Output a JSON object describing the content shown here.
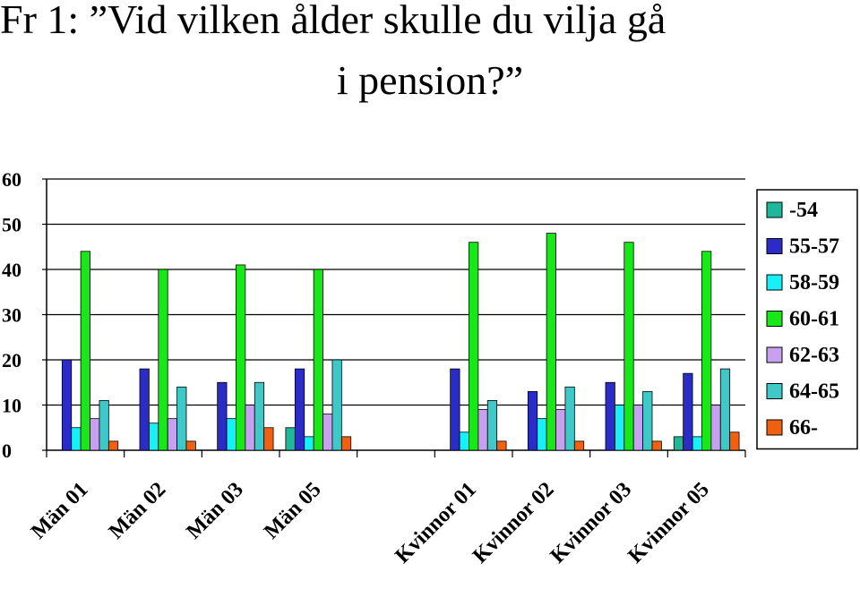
{
  "title": {
    "line1": "Fr 1: ”Vid vilken ålder skulle du vilja gå",
    "line2": "i pension?”"
  },
  "chart_data": {
    "type": "bar",
    "categories": [
      "Män 01",
      "Män 02",
      "Män 03",
      "Män 05",
      "",
      "Kvinnor 01",
      "Kvinnor 02",
      "Kvinnor 03",
      "Kvinnor 05"
    ],
    "series": [
      {
        "name": "-54",
        "color": "#1fb89a",
        "values": [
          0,
          0,
          0,
          5,
          null,
          0,
          0,
          0,
          3
        ]
      },
      {
        "name": "55-57",
        "color": "#2b2bc8",
        "values": [
          20,
          18,
          15,
          18,
          null,
          18,
          13,
          15,
          17
        ]
      },
      {
        "name": "58-59",
        "color": "#18f0f8",
        "values": [
          5,
          6,
          7,
          3,
          null,
          4,
          7,
          10,
          3
        ]
      },
      {
        "name": "60-61",
        "color": "#18e818",
        "values": [
          44,
          40,
          41,
          40,
          null,
          46,
          48,
          46,
          44
        ]
      },
      {
        "name": "62-63",
        "color": "#c8a0f0",
        "values": [
          7,
          7,
          10,
          8,
          null,
          9,
          9,
          10,
          10
        ]
      },
      {
        "name": "64-65",
        "color": "#3ec8c8",
        "values": [
          11,
          14,
          15,
          20,
          null,
          11,
          14,
          13,
          18
        ]
      },
      {
        "name": "66-",
        "color": "#f06010",
        "values": [
          2,
          2,
          5,
          3,
          null,
          2,
          2,
          2,
          4
        ]
      }
    ],
    "yticks": [
      0,
      10,
      20,
      30,
      40,
      50,
      60
    ],
    "ylim": [
      0,
      60
    ],
    "grid": true,
    "legend": "right"
  }
}
